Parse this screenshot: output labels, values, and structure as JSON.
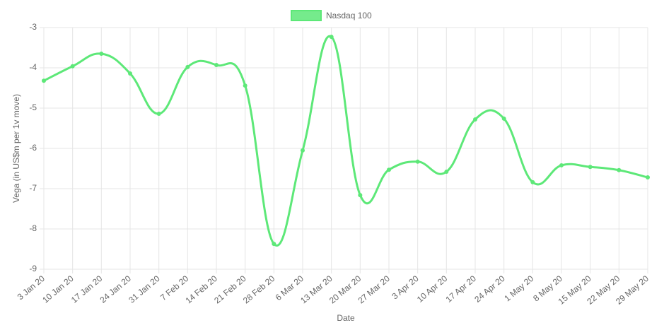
{
  "chart_data": {
    "type": "line",
    "x_label": "Date",
    "y_label": "Vega (in US$m per 1v move)",
    "categories": [
      "3 Jan 20",
      "10 Jan 20",
      "17 Jan 20",
      "24 Jan 20",
      "31 Jan 20",
      "7 Feb 20",
      "14 Feb 20",
      "21 Feb 20",
      "28 Feb 20",
      "6 Mar 20",
      "13 Mar 20",
      "20 Mar 20",
      "27 Mar 20",
      "3 Apr 20",
      "10 Apr 20",
      "17 Apr 20",
      "24 Apr 20",
      "1 May 20",
      "8 May 20",
      "15 May 20",
      "22 May 20",
      "29 May 20"
    ],
    "series": [
      {
        "name": "Nasdaq 100",
        "color": "#5de878",
        "values": [
          -4.32,
          -3.96,
          -3.65,
          -4.14,
          -5.14,
          -3.98,
          -3.93,
          -4.44,
          -8.37,
          -6.05,
          -3.23,
          -7.16,
          -6.53,
          -6.33,
          -6.58,
          -5.28,
          -5.26,
          -6.84,
          -6.42,
          -6.46,
          -6.54,
          -6.72
        ]
      }
    ],
    "ylim": [
      -9,
      -3
    ],
    "yticks": [
      -9,
      -8,
      -7,
      -6,
      -5,
      -4,
      -3
    ],
    "grid": true,
    "legend": "top"
  }
}
